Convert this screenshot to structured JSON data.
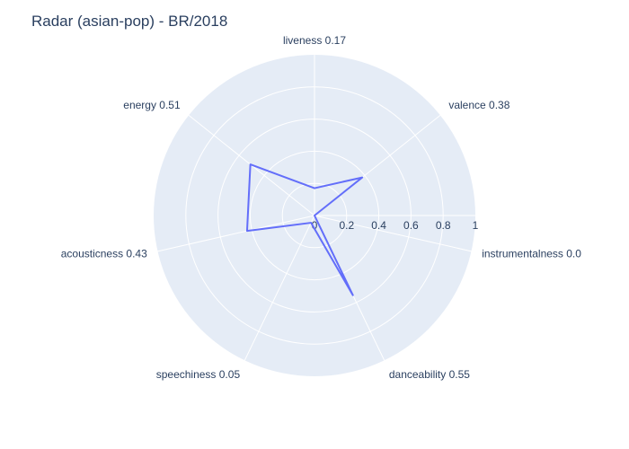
{
  "chart_data": {
    "type": "radar",
    "title": "Radar (asian-pop) - BR/2018",
    "categories": [
      "liveness 0.17",
      "valence 0.38",
      "instrumentalness 0.0",
      "danceability 0.55",
      "speechiness 0.05",
      "acousticness 0.43",
      "energy 0.51"
    ],
    "values": [
      0.17,
      0.38,
      0.0,
      0.55,
      0.05,
      0.43,
      0.51
    ],
    "radial_range": [
      0,
      1
    ],
    "radial_ticks": [
      "0",
      "0.2",
      "0.4",
      "0.6",
      "0.8",
      "1"
    ],
    "grid": true,
    "colors": {
      "line": "#636efa",
      "polar_bg": "#e5ecf6",
      "grid": "#ffffff",
      "text": "#2a3f5f"
    }
  }
}
